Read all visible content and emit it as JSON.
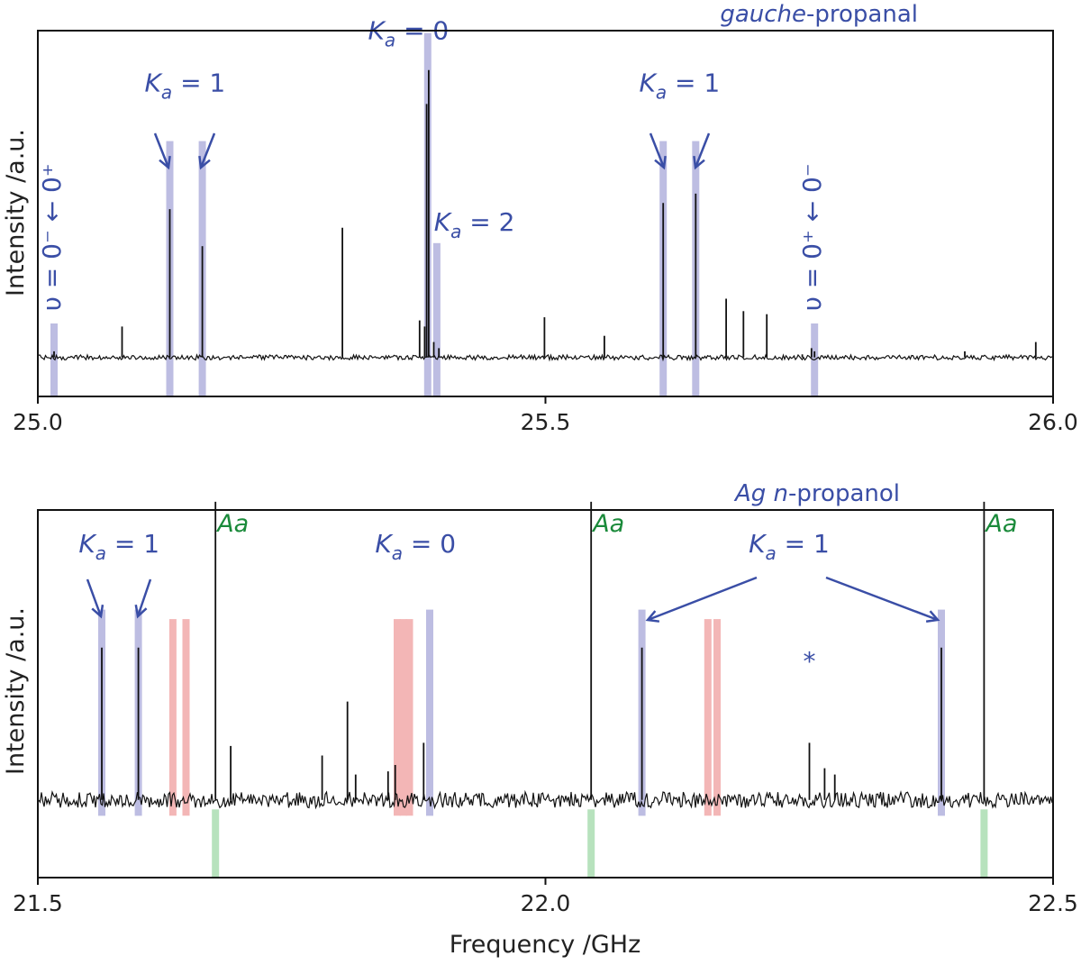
{
  "chart_data": [
    {
      "type": "line",
      "title_italic": "gauche",
      "title_rest": "-propanal",
      "ylabel": "Intensity /a.u.",
      "xlabel": "",
      "xlim": [
        25.0,
        26.0
      ],
      "xticks": [
        "25.0",
        "25.5",
        "26.0"
      ],
      "grid": false,
      "baseline": 0.03,
      "noise_amplitude": 0.008,
      "peaks": [
        {
          "x": 25.016,
          "y": 0.05
        },
        {
          "x": 25.083,
          "y": 0.13
        },
        {
          "x": 25.13,
          "y": 0.51
        },
        {
          "x": 25.162,
          "y": 0.39
        },
        {
          "x": 25.3,
          "y": 0.45
        },
        {
          "x": 25.376,
          "y": 0.15
        },
        {
          "x": 25.381,
          "y": 0.13
        },
        {
          "x": 25.383,
          "y": 0.85
        },
        {
          "x": 25.385,
          "y": 0.96
        },
        {
          "x": 25.39,
          "y": 0.08
        },
        {
          "x": 25.395,
          "y": 0.06
        },
        {
          "x": 25.499,
          "y": 0.16
        },
        {
          "x": 25.558,
          "y": 0.1
        },
        {
          "x": 25.616,
          "y": 0.53
        },
        {
          "x": 25.648,
          "y": 0.56
        },
        {
          "x": 25.678,
          "y": 0.22
        },
        {
          "x": 25.695,
          "y": 0.18
        },
        {
          "x": 25.718,
          "y": 0.17
        },
        {
          "x": 25.753,
          "y": 0.04
        },
        {
          "x": 25.762,
          "y": 0.06
        },
        {
          "x": 25.765,
          "y": 0.05
        },
        {
          "x": 25.913,
          "y": 0.05
        },
        {
          "x": 25.983,
          "y": 0.08
        }
      ],
      "highlights": [
        {
          "x": 25.016,
          "color": "blue",
          "from": 0.0,
          "to": 0.14
        },
        {
          "x": 25.13,
          "color": "blue",
          "from": 0.0,
          "to": 0.73
        },
        {
          "x": 25.162,
          "color": "blue",
          "from": 0.0,
          "to": 0.73
        },
        {
          "x": 25.384,
          "color": "blue",
          "from": 0.0,
          "to": 1.08
        },
        {
          "x": 25.393,
          "color": "blue",
          "from": 0.0,
          "to": 0.4
        },
        {
          "x": 25.616,
          "color": "blue",
          "from": 0.0,
          "to": 0.73
        },
        {
          "x": 25.648,
          "color": "blue",
          "from": 0.0,
          "to": 0.73
        },
        {
          "x": 25.765,
          "color": "blue",
          "from": 0.0,
          "to": 0.14
        }
      ],
      "annotations": [
        {
          "sym": "K",
          "sub": "a",
          "rest": " = 1",
          "label": "Ka = 1",
          "x": 25.145,
          "y": 0.89
        },
        {
          "sym": "K",
          "sub": "a",
          "rest": " = 0",
          "label": "Ka = 0",
          "x": 25.365,
          "y": 1.06
        },
        {
          "sym": "K",
          "sub": "a",
          "rest": " = 2",
          "label": "Ka = 2",
          "x": 25.43,
          "y": 0.44
        },
        {
          "sym": "K",
          "sub": "a",
          "rest": " = 1",
          "label": "Ka = 1",
          "x": 25.632,
          "y": 0.89
        }
      ],
      "vertical_labels": [
        {
          "label": "υ = 0⁻ ← 0⁺",
          "x": 25.016
        },
        {
          "label": "υ = 0⁺ ← 0⁻",
          "x": 25.765
        }
      ]
    },
    {
      "type": "line",
      "title_italic": "Ag n",
      "title_rest": "-propanol",
      "ylabel": "Intensity /a.u.",
      "xlabel": "Frequency /GHz",
      "xlim": [
        21.5,
        22.5
      ],
      "xticks": [
        "21.5",
        "22.0",
        "22.5"
      ],
      "grid": false,
      "baseline": 0.12,
      "noise_amplitude": 0.025,
      "peaks": [
        {
          "x": 21.563,
          "y": 0.6
        },
        {
          "x": 21.599,
          "y": 0.6
        },
        {
          "x": 21.675,
          "y": 1.06
        },
        {
          "x": 21.69,
          "y": 0.29
        },
        {
          "x": 21.78,
          "y": 0.26
        },
        {
          "x": 21.805,
          "y": 0.43
        },
        {
          "x": 21.813,
          "y": 0.2
        },
        {
          "x": 21.845,
          "y": 0.21
        },
        {
          "x": 21.852,
          "y": 0.23
        },
        {
          "x": 21.88,
          "y": 0.3
        },
        {
          "x": 22.045,
          "y": 1.06
        },
        {
          "x": 22.095,
          "y": 0.6
        },
        {
          "x": 22.26,
          "y": 0.3
        },
        {
          "x": 22.275,
          "y": 0.22
        },
        {
          "x": 22.285,
          "y": 0.2
        },
        {
          "x": 22.39,
          "y": 0.6
        },
        {
          "x": 22.432,
          "y": 1.06
        }
      ],
      "highlights": [
        {
          "x": 21.563,
          "color": "blue",
          "from": 0.07,
          "to": 0.72
        },
        {
          "x": 21.599,
          "color": "blue",
          "from": 0.07,
          "to": 0.72
        },
        {
          "x": 21.886,
          "color": "blue",
          "from": 0.07,
          "to": 0.72
        },
        {
          "x": 22.095,
          "color": "blue",
          "from": 0.07,
          "to": 0.72
        },
        {
          "x": 22.39,
          "color": "blue",
          "from": 0.07,
          "to": 0.72
        },
        {
          "x": 21.633,
          "color": "red",
          "from": 0.07,
          "to": 0.69
        },
        {
          "x": 21.646,
          "color": "red",
          "from": 0.07,
          "to": 0.69
        },
        {
          "x": 21.854,
          "color": "red",
          "from": 0.07,
          "to": 0.69
        },
        {
          "x": 21.86,
          "color": "red",
          "from": 0.07,
          "to": 0.69
        },
        {
          "x": 21.866,
          "color": "red",
          "from": 0.07,
          "to": 0.69
        },
        {
          "x": 22.16,
          "color": "red",
          "from": 0.07,
          "to": 0.69
        },
        {
          "x": 22.169,
          "color": "red",
          "from": 0.07,
          "to": 0.69
        },
        {
          "x": 21.675,
          "color": "green",
          "from": 0.0,
          "to": 0.09
        },
        {
          "x": 22.045,
          "color": "green",
          "from": 0.0,
          "to": 0.09
        },
        {
          "x": 22.432,
          "color": "green",
          "from": 0.0,
          "to": 0.09
        }
      ],
      "annotations": [
        {
          "sym": "K",
          "sub": "a",
          "rest": " = 1",
          "label": "Ka = 1",
          "x": 21.58,
          "y": 0.9
        },
        {
          "sym": "K",
          "sub": "a",
          "rest": " = 0",
          "label": "Ka = 0",
          "x": 21.872,
          "y": 0.9
        },
        {
          "sym": "K",
          "sub": "a",
          "rest": " = 1",
          "label": "Ka = 1",
          "x": 22.24,
          "y": 0.9
        }
      ],
      "aa_labels": [
        {
          "label": "Aa",
          "x": 21.675
        },
        {
          "label": "Aa",
          "x": 22.045
        },
        {
          "label": "Aa",
          "x": 22.432
        }
      ],
      "asterisk": {
        "label": "*",
        "x": 22.26,
        "y": 0.53
      }
    }
  ]
}
